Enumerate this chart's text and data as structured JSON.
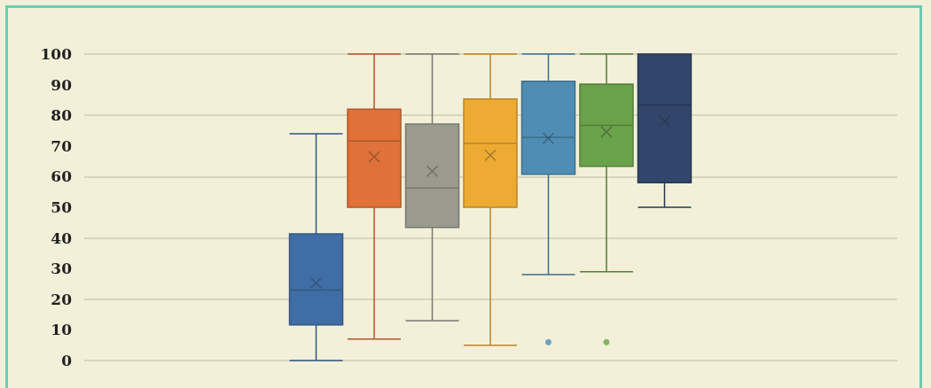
{
  "chart_data": {
    "type": "box",
    "categories": [
      null
    ],
    "series": [
      {
        "color": "#3f6ea6",
        "boxes": [
          {
            "low": 0,
            "q1": 11.6,
            "median": 23,
            "q3": 41.3,
            "high": 74,
            "mean": 25.3
          }
        ]
      },
      {
        "color": "#e07138",
        "boxes": [
          {
            "low": 7,
            "q1": 50,
            "median": 71.6,
            "q3": 82,
            "high": 100,
            "mean": 66.5
          }
        ]
      },
      {
        "color": "#9a9a8e",
        "boxes": [
          {
            "low": 13,
            "q1": 43.4,
            "median": 56.3,
            "q3": 77.2,
            "high": 100,
            "mean": 61.8
          }
        ]
      },
      {
        "color": "#edab33",
        "boxes": [
          {
            "low": 5,
            "q1": 50,
            "median": 70.9,
            "q3": 85.3,
            "high": 100,
            "mean": 67
          }
        ]
      },
      {
        "color": "#4f8db4",
        "boxes": [
          {
            "low": 28,
            "q1": 60.8,
            "median": 72.8,
            "q3": 91.1,
            "high": 100,
            "mean": 72.5,
            "outliers": [
              6
            ]
          }
        ]
      },
      {
        "color": "#6aa24a",
        "boxes": [
          {
            "low": 29,
            "q1": 63.4,
            "median": 76.7,
            "q3": 90.2,
            "high": 100,
            "mean": 74.6,
            "outliers": [
              6
            ]
          }
        ]
      },
      {
        "color": "#32466b",
        "boxes": [
          {
            "low": 50,
            "q1": 58,
            "median": 83.4,
            "q3": 100,
            "high": 100,
            "mean": 78.1
          }
        ]
      }
    ],
    "ylim": [
      0,
      100
    ],
    "yticks": [
      0,
      10,
      20,
      30,
      40,
      50,
      60,
      70,
      80,
      90,
      100
    ],
    "grid": "y",
    "tick_labels": "y"
  }
}
